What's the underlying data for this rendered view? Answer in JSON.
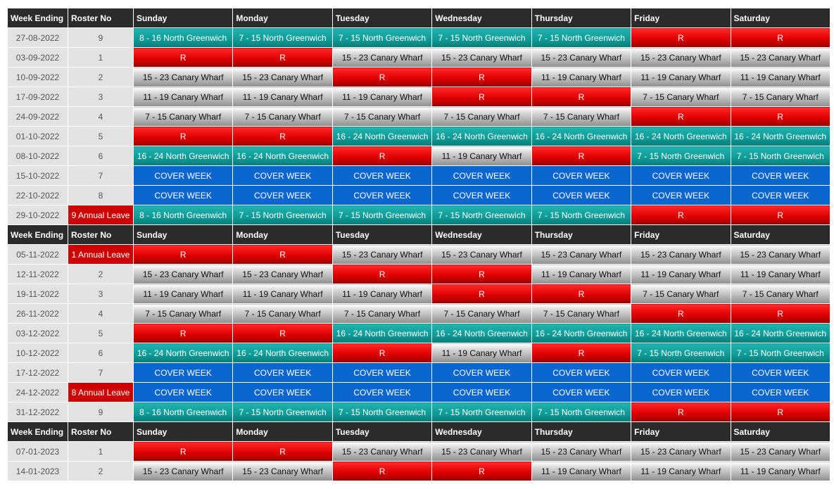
{
  "headers": [
    "Week Ending",
    "Roster No",
    "Sunday",
    "Monday",
    "Tuesday",
    "Wednesday",
    "Thursday",
    "Friday",
    "Saturday"
  ],
  "colors": {
    "header_bg": "#2b2b2b",
    "rest_day_red": "#e00000",
    "canary_wharf_grey": "#bdbdbd",
    "north_greenwich_teal": "#0c9a96",
    "cover_week_blue": "#0a66cf",
    "annual_leave_red": "#cc0000"
  },
  "blocks": [
    {
      "rows": [
        {
          "week": "27-08-2022",
          "roster": "9",
          "roster_style": "plain",
          "days": [
            {
              "text": "8 - 16 North Greenwich",
              "style": "teal"
            },
            {
              "text": "7 - 15 North Greenwich",
              "style": "teal"
            },
            {
              "text": "7 - 15 North Greenwich",
              "style": "teal"
            },
            {
              "text": "7 - 15 North Greenwich",
              "style": "teal"
            },
            {
              "text": "7 - 15 North Greenwich",
              "style": "teal"
            },
            {
              "text": "R",
              "style": "red"
            },
            {
              "text": "R",
              "style": "red"
            }
          ]
        },
        {
          "week": "03-09-2022",
          "roster": "1",
          "roster_style": "plain",
          "days": [
            {
              "text": "R",
              "style": "red"
            },
            {
              "text": "R",
              "style": "red"
            },
            {
              "text": "15 - 23 Canary Wharf",
              "style": "grey"
            },
            {
              "text": "15 - 23 Canary Wharf",
              "style": "grey"
            },
            {
              "text": "15 - 23 Canary Wharf",
              "style": "grey"
            },
            {
              "text": "15 - 23 Canary Wharf",
              "style": "grey"
            },
            {
              "text": "15 - 23 Canary Wharf",
              "style": "grey"
            }
          ]
        },
        {
          "week": "10-09-2022",
          "roster": "2",
          "roster_style": "plain",
          "days": [
            {
              "text": "15 - 23 Canary Wharf",
              "style": "grey"
            },
            {
              "text": "15 - 23 Canary Wharf",
              "style": "grey"
            },
            {
              "text": "R",
              "style": "red"
            },
            {
              "text": "R",
              "style": "red"
            },
            {
              "text": "11 - 19 Canary Wharf",
              "style": "grey"
            },
            {
              "text": "11 - 19 Canary Wharf",
              "style": "grey"
            },
            {
              "text": "11 - 19 Canary Wharf",
              "style": "grey"
            }
          ]
        },
        {
          "week": "17-09-2022",
          "roster": "3",
          "roster_style": "plain",
          "days": [
            {
              "text": "11 - 19 Canary Wharf",
              "style": "grey"
            },
            {
              "text": "11 - 19 Canary Wharf",
              "style": "grey"
            },
            {
              "text": "11 - 19 Canary Wharf",
              "style": "grey"
            },
            {
              "text": "R",
              "style": "red"
            },
            {
              "text": "R",
              "style": "red"
            },
            {
              "text": "7 - 15 Canary Wharf",
              "style": "grey"
            },
            {
              "text": "7 - 15 Canary Wharf",
              "style": "grey"
            }
          ]
        },
        {
          "week": "24-09-2022",
          "roster": "4",
          "roster_style": "plain",
          "days": [
            {
              "text": "7 - 15 Canary Wharf",
              "style": "grey"
            },
            {
              "text": "7 - 15 Canary Wharf",
              "style": "grey"
            },
            {
              "text": "7 - 15 Canary Wharf",
              "style": "grey"
            },
            {
              "text": "7 - 15 Canary Wharf",
              "style": "grey"
            },
            {
              "text": "7 - 15 Canary Wharf",
              "style": "grey"
            },
            {
              "text": "R",
              "style": "red"
            },
            {
              "text": "R",
              "style": "red"
            }
          ]
        },
        {
          "week": "01-10-2022",
          "roster": "5",
          "roster_style": "plain",
          "days": [
            {
              "text": "R",
              "style": "red"
            },
            {
              "text": "R",
              "style": "red"
            },
            {
              "text": "16 - 24 North Greenwich",
              "style": "teal"
            },
            {
              "text": "16 - 24 North Greenwich",
              "style": "teal"
            },
            {
              "text": "16 - 24 North Greenwich",
              "style": "teal"
            },
            {
              "text": "16 - 24 North Greenwich",
              "style": "teal"
            },
            {
              "text": "16 - 24 North Greenwich",
              "style": "teal"
            }
          ]
        },
        {
          "week": "08-10-2022",
          "roster": "6",
          "roster_style": "plain",
          "days": [
            {
              "text": "16 - 24 North Greenwich",
              "style": "teal"
            },
            {
              "text": "16 - 24 North Greenwich",
              "style": "teal"
            },
            {
              "text": "R",
              "style": "red"
            },
            {
              "text": "11 - 19 Canary Wharf",
              "style": "grey"
            },
            {
              "text": "R",
              "style": "red"
            },
            {
              "text": "7 - 15 North Greenwich",
              "style": "teal"
            },
            {
              "text": "7 - 15 North Greenwich",
              "style": "teal"
            }
          ]
        },
        {
          "week": "15-10-2022",
          "roster": "7",
          "roster_style": "plain",
          "days": [
            {
              "text": "COVER WEEK",
              "style": "blue"
            },
            {
              "text": "COVER WEEK",
              "style": "blue"
            },
            {
              "text": "COVER WEEK",
              "style": "blue"
            },
            {
              "text": "COVER WEEK",
              "style": "blue"
            },
            {
              "text": "COVER WEEK",
              "style": "blue"
            },
            {
              "text": "COVER WEEK",
              "style": "blue"
            },
            {
              "text": "COVER WEEK",
              "style": "blue"
            }
          ]
        },
        {
          "week": "22-10-2022",
          "roster": "8",
          "roster_style": "plain",
          "days": [
            {
              "text": "COVER WEEK",
              "style": "blue"
            },
            {
              "text": "COVER WEEK",
              "style": "blue"
            },
            {
              "text": "COVER WEEK",
              "style": "blue"
            },
            {
              "text": "COVER WEEK",
              "style": "blue"
            },
            {
              "text": "COVER WEEK",
              "style": "blue"
            },
            {
              "text": "COVER WEEK",
              "style": "blue"
            },
            {
              "text": "COVER WEEK",
              "style": "blue"
            }
          ]
        },
        {
          "week": "29-10-2022",
          "roster": "9 Annual Leave",
          "roster_style": "leave",
          "days": [
            {
              "text": "8 - 16 North Greenwich",
              "style": "teal"
            },
            {
              "text": "7 - 15 North Greenwich",
              "style": "teal"
            },
            {
              "text": "7 - 15 North Greenwich",
              "style": "teal"
            },
            {
              "text": "7 - 15 North Greenwich",
              "style": "teal"
            },
            {
              "text": "7 - 15 North Greenwich",
              "style": "teal"
            },
            {
              "text": "R",
              "style": "red"
            },
            {
              "text": "R",
              "style": "red"
            }
          ]
        }
      ]
    },
    {
      "rows": [
        {
          "week": "05-11-2022",
          "roster": "1 Annual Leave",
          "roster_style": "leave",
          "days": [
            {
              "text": "R",
              "style": "red"
            },
            {
              "text": "R",
              "style": "red"
            },
            {
              "text": "15 - 23 Canary Wharf",
              "style": "grey"
            },
            {
              "text": "15 - 23 Canary Wharf",
              "style": "grey"
            },
            {
              "text": "15 - 23 Canary Wharf",
              "style": "grey"
            },
            {
              "text": "15 - 23 Canary Wharf",
              "style": "grey"
            },
            {
              "text": "15 - 23 Canary Wharf",
              "style": "grey"
            }
          ]
        },
        {
          "week": "12-11-2022",
          "roster": "2",
          "roster_style": "plain",
          "days": [
            {
              "text": "15 - 23 Canary Wharf",
              "style": "grey"
            },
            {
              "text": "15 - 23 Canary Wharf",
              "style": "grey"
            },
            {
              "text": "R",
              "style": "red"
            },
            {
              "text": "R",
              "style": "red"
            },
            {
              "text": "11 - 19 Canary Wharf",
              "style": "grey"
            },
            {
              "text": "11 - 19 Canary Wharf",
              "style": "grey"
            },
            {
              "text": "11 - 19 Canary Wharf",
              "style": "grey"
            }
          ]
        },
        {
          "week": "19-11-2022",
          "roster": "3",
          "roster_style": "plain",
          "days": [
            {
              "text": "11 - 19 Canary Wharf",
              "style": "grey"
            },
            {
              "text": "11 - 19 Canary Wharf",
              "style": "grey"
            },
            {
              "text": "11 - 19 Canary Wharf",
              "style": "grey"
            },
            {
              "text": "R",
              "style": "red"
            },
            {
              "text": "R",
              "style": "red"
            },
            {
              "text": "7 - 15 Canary Wharf",
              "style": "grey"
            },
            {
              "text": "7 - 15 Canary Wharf",
              "style": "grey"
            }
          ]
        },
        {
          "week": "26-11-2022",
          "roster": "4",
          "roster_style": "plain",
          "days": [
            {
              "text": "7 - 15 Canary Wharf",
              "style": "grey"
            },
            {
              "text": "7 - 15 Canary Wharf",
              "style": "grey"
            },
            {
              "text": "7 - 15 Canary Wharf",
              "style": "grey"
            },
            {
              "text": "7 - 15 Canary Wharf",
              "style": "grey"
            },
            {
              "text": "7 - 15 Canary Wharf",
              "style": "grey"
            },
            {
              "text": "R",
              "style": "red"
            },
            {
              "text": "R",
              "style": "red"
            }
          ]
        },
        {
          "week": "03-12-2022",
          "roster": "5",
          "roster_style": "plain",
          "days": [
            {
              "text": "R",
              "style": "red"
            },
            {
              "text": "R",
              "style": "red"
            },
            {
              "text": "16 - 24 North Greenwich",
              "style": "teal"
            },
            {
              "text": "16 - 24 North Greenwich",
              "style": "teal"
            },
            {
              "text": "16 - 24 North Greenwich",
              "style": "teal"
            },
            {
              "text": "16 - 24 North Greenwich",
              "style": "teal"
            },
            {
              "text": "16 - 24 North Greenwich",
              "style": "teal"
            }
          ]
        },
        {
          "week": "10-12-2022",
          "roster": "6",
          "roster_style": "plain",
          "days": [
            {
              "text": "16 - 24 North Greenwich",
              "style": "teal"
            },
            {
              "text": "16 - 24 North Greenwich",
              "style": "teal"
            },
            {
              "text": "R",
              "style": "red"
            },
            {
              "text": "11 - 19 Canary Wharf",
              "style": "grey"
            },
            {
              "text": "R",
              "style": "red"
            },
            {
              "text": "7 - 15 North Greenwich",
              "style": "teal"
            },
            {
              "text": "7 - 15 North Greenwich",
              "style": "teal"
            }
          ]
        },
        {
          "week": "17-12-2022",
          "roster": "7",
          "roster_style": "plain",
          "days": [
            {
              "text": "COVER WEEK",
              "style": "blue"
            },
            {
              "text": "COVER WEEK",
              "style": "blue"
            },
            {
              "text": "COVER WEEK",
              "style": "blue"
            },
            {
              "text": "COVER WEEK",
              "style": "blue"
            },
            {
              "text": "COVER WEEK",
              "style": "blue"
            },
            {
              "text": "COVER WEEK",
              "style": "blue"
            },
            {
              "text": "COVER WEEK",
              "style": "blue"
            }
          ]
        },
        {
          "week": "24-12-2022",
          "roster": "8 Annual Leave",
          "roster_style": "leave",
          "days": [
            {
              "text": "COVER WEEK",
              "style": "blue"
            },
            {
              "text": "COVER WEEK",
              "style": "blue"
            },
            {
              "text": "COVER WEEK",
              "style": "blue"
            },
            {
              "text": "COVER WEEK",
              "style": "blue"
            },
            {
              "text": "COVER WEEK",
              "style": "blue"
            },
            {
              "text": "COVER WEEK",
              "style": "blue"
            },
            {
              "text": "COVER WEEK",
              "style": "blue"
            }
          ]
        },
        {
          "week": "31-12-2022",
          "roster": "9",
          "roster_style": "plain",
          "days": [
            {
              "text": "8 - 16 North Greenwich",
              "style": "teal"
            },
            {
              "text": "7 - 15 North Greenwich",
              "style": "teal"
            },
            {
              "text": "7 - 15 North Greenwich",
              "style": "teal"
            },
            {
              "text": "7 - 15 North Greenwich",
              "style": "teal"
            },
            {
              "text": "7 - 15 North Greenwich",
              "style": "teal"
            },
            {
              "text": "R",
              "style": "red"
            },
            {
              "text": "R",
              "style": "red"
            }
          ]
        }
      ]
    },
    {
      "rows": [
        {
          "week": "07-01-2023",
          "roster": "1",
          "roster_style": "plain",
          "days": [
            {
              "text": "R",
              "style": "red"
            },
            {
              "text": "R",
              "style": "red"
            },
            {
              "text": "15 - 23 Canary Wharf",
              "style": "grey"
            },
            {
              "text": "15 - 23 Canary Wharf",
              "style": "grey"
            },
            {
              "text": "15 - 23 Canary Wharf",
              "style": "grey"
            },
            {
              "text": "15 - 23 Canary Wharf",
              "style": "grey"
            },
            {
              "text": "15 - 23 Canary Wharf",
              "style": "grey"
            }
          ]
        },
        {
          "week": "14-01-2023",
          "roster": "2",
          "roster_style": "plain",
          "days": [
            {
              "text": "15 - 23 Canary Wharf",
              "style": "grey"
            },
            {
              "text": "15 - 23 Canary Wharf",
              "style": "grey"
            },
            {
              "text": "R",
              "style": "red"
            },
            {
              "text": "R",
              "style": "red"
            },
            {
              "text": "11 - 19 Canary Wharf",
              "style": "grey"
            },
            {
              "text": "11 - 19 Canary Wharf",
              "style": "grey"
            },
            {
              "text": "11 - 19 Canary Wharf",
              "style": "grey"
            }
          ]
        }
      ]
    }
  ]
}
